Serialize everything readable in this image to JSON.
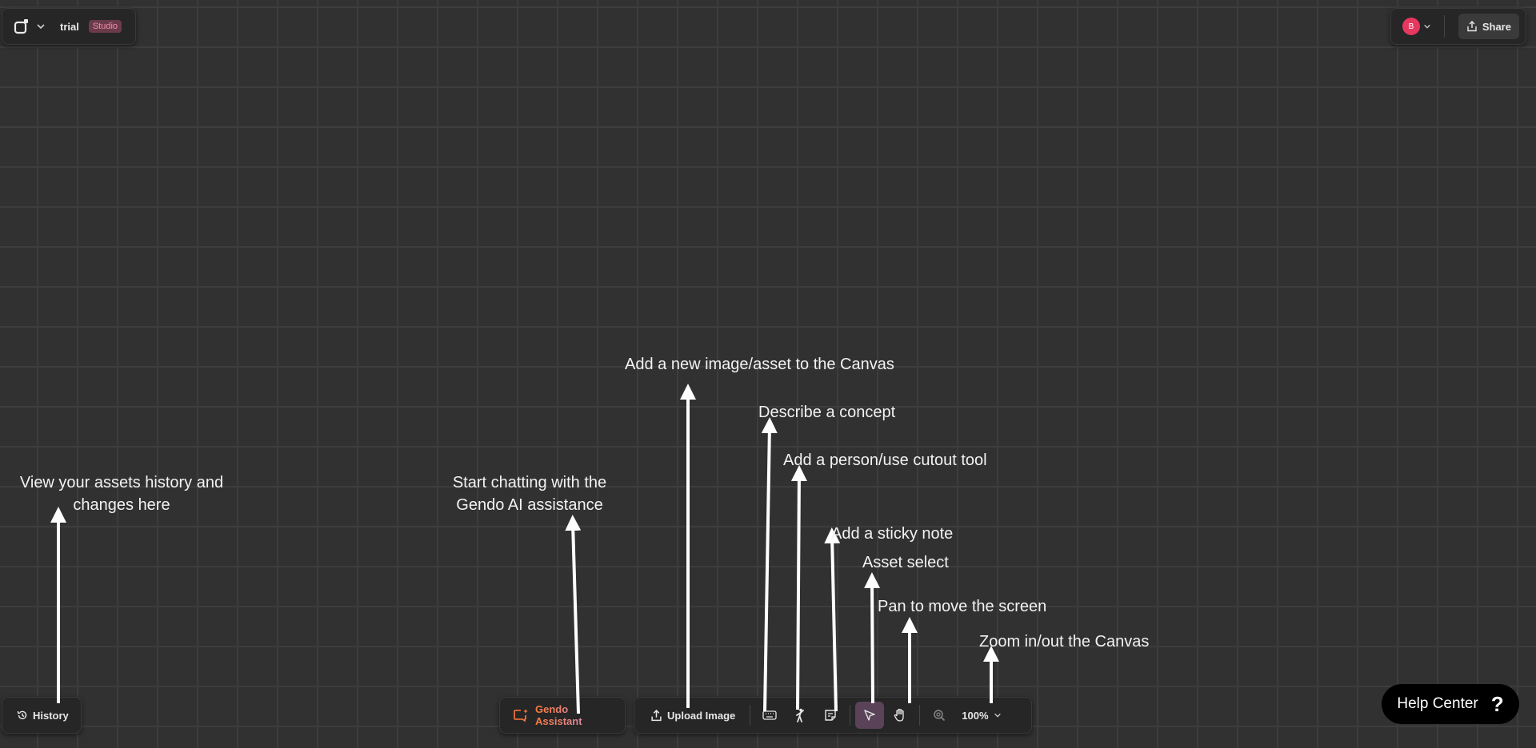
{
  "header": {
    "project_name": "trial",
    "badge": "Studio",
    "user_initial": "B",
    "share_label": "Share"
  },
  "history": {
    "label": "History"
  },
  "assistant": {
    "label": "Gendo Assistant"
  },
  "toolbar": {
    "upload_label": "Upload Image",
    "zoom_level": "100%",
    "active_tool": "select",
    "tools": [
      "prompt-keyboard",
      "person-cutout",
      "sticky-note",
      "select-cursor",
      "pan-hand",
      "zoom"
    ]
  },
  "help": {
    "label": "Help Center",
    "icon": "?"
  },
  "annotations": {
    "history_line1": "View your assets history and",
    "history_line2": "changes here",
    "gendo_line1": "Start chatting with the",
    "gendo_line2": "Gendo AI assistance",
    "upload": "Add a new image/asset to the Canvas",
    "describe": "Describe a concept",
    "person": "Add a person/use cutout tool",
    "sticky": "Add a sticky note",
    "select": "Asset select",
    "pan": "Pan to move the screen",
    "zoom": "Zoom in/out the Canvas"
  },
  "colors": {
    "canvas": "#313131",
    "grid": "#3d3d3d",
    "panel": "#262626",
    "accent_orange": "#ff7a3d",
    "badge_bg": "#6b3b4b",
    "select_active": "#5a4358",
    "avatar": "#e5385f"
  }
}
